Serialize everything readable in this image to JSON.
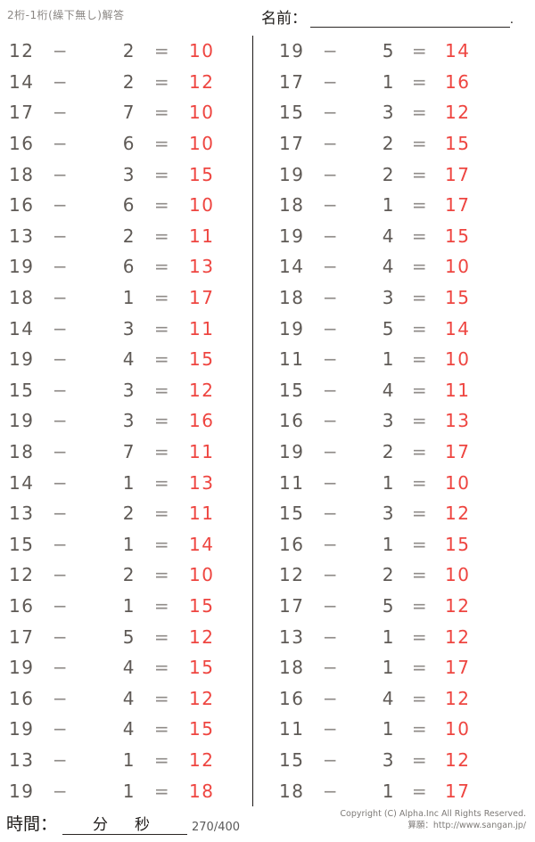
{
  "page": {
    "title": "2桁-1桁(繰下無し)解答",
    "name_label": "名前：",
    "name_suffix": "."
  },
  "symbols": {
    "minus": "−",
    "equals": "="
  },
  "colors": {
    "answer_red": "#ee4540",
    "number_gray": "#5f5a56",
    "operator_gray": "#8f8b88",
    "divider_black": "#1c1917"
  },
  "footer": {
    "time_label": "時間：",
    "minutes_label": "分",
    "seconds_label": "秒",
    "page_number": "270/400",
    "copyright_line1": "Copyright (C) Alpha.Inc All Rights Reserved.",
    "copyright_line2": "算願：http://www.sangan.jp/"
  },
  "problems": {
    "left": [
      {
        "a": 12,
        "b": 2,
        "ans": 10
      },
      {
        "a": 14,
        "b": 2,
        "ans": 12
      },
      {
        "a": 17,
        "b": 7,
        "ans": 10
      },
      {
        "a": 16,
        "b": 6,
        "ans": 10
      },
      {
        "a": 18,
        "b": 3,
        "ans": 15
      },
      {
        "a": 16,
        "b": 6,
        "ans": 10
      },
      {
        "a": 13,
        "b": 2,
        "ans": 11
      },
      {
        "a": 19,
        "b": 6,
        "ans": 13
      },
      {
        "a": 18,
        "b": 1,
        "ans": 17
      },
      {
        "a": 14,
        "b": 3,
        "ans": 11
      },
      {
        "a": 19,
        "b": 4,
        "ans": 15
      },
      {
        "a": 15,
        "b": 3,
        "ans": 12
      },
      {
        "a": 19,
        "b": 3,
        "ans": 16
      },
      {
        "a": 18,
        "b": 7,
        "ans": 11
      },
      {
        "a": 14,
        "b": 1,
        "ans": 13
      },
      {
        "a": 13,
        "b": 2,
        "ans": 11
      },
      {
        "a": 15,
        "b": 1,
        "ans": 14
      },
      {
        "a": 12,
        "b": 2,
        "ans": 10
      },
      {
        "a": 16,
        "b": 1,
        "ans": 15
      },
      {
        "a": 17,
        "b": 5,
        "ans": 12
      },
      {
        "a": 19,
        "b": 4,
        "ans": 15
      },
      {
        "a": 16,
        "b": 4,
        "ans": 12
      },
      {
        "a": 19,
        "b": 4,
        "ans": 15
      },
      {
        "a": 13,
        "b": 1,
        "ans": 12
      },
      {
        "a": 19,
        "b": 1,
        "ans": 18
      }
    ],
    "right": [
      {
        "a": 19,
        "b": 5,
        "ans": 14
      },
      {
        "a": 17,
        "b": 1,
        "ans": 16
      },
      {
        "a": 15,
        "b": 3,
        "ans": 12
      },
      {
        "a": 17,
        "b": 2,
        "ans": 15
      },
      {
        "a": 19,
        "b": 2,
        "ans": 17
      },
      {
        "a": 18,
        "b": 1,
        "ans": 17
      },
      {
        "a": 19,
        "b": 4,
        "ans": 15
      },
      {
        "a": 14,
        "b": 4,
        "ans": 10
      },
      {
        "a": 18,
        "b": 3,
        "ans": 15
      },
      {
        "a": 19,
        "b": 5,
        "ans": 14
      },
      {
        "a": 11,
        "b": 1,
        "ans": 10
      },
      {
        "a": 15,
        "b": 4,
        "ans": 11
      },
      {
        "a": 16,
        "b": 3,
        "ans": 13
      },
      {
        "a": 19,
        "b": 2,
        "ans": 17
      },
      {
        "a": 11,
        "b": 1,
        "ans": 10
      },
      {
        "a": 15,
        "b": 3,
        "ans": 12
      },
      {
        "a": 16,
        "b": 1,
        "ans": 15
      },
      {
        "a": 12,
        "b": 2,
        "ans": 10
      },
      {
        "a": 17,
        "b": 5,
        "ans": 12
      },
      {
        "a": 13,
        "b": 1,
        "ans": 12
      },
      {
        "a": 18,
        "b": 1,
        "ans": 17
      },
      {
        "a": 16,
        "b": 4,
        "ans": 12
      },
      {
        "a": 11,
        "b": 1,
        "ans": 10
      },
      {
        "a": 15,
        "b": 3,
        "ans": 12
      },
      {
        "a": 18,
        "b": 1,
        "ans": 17
      }
    ]
  }
}
